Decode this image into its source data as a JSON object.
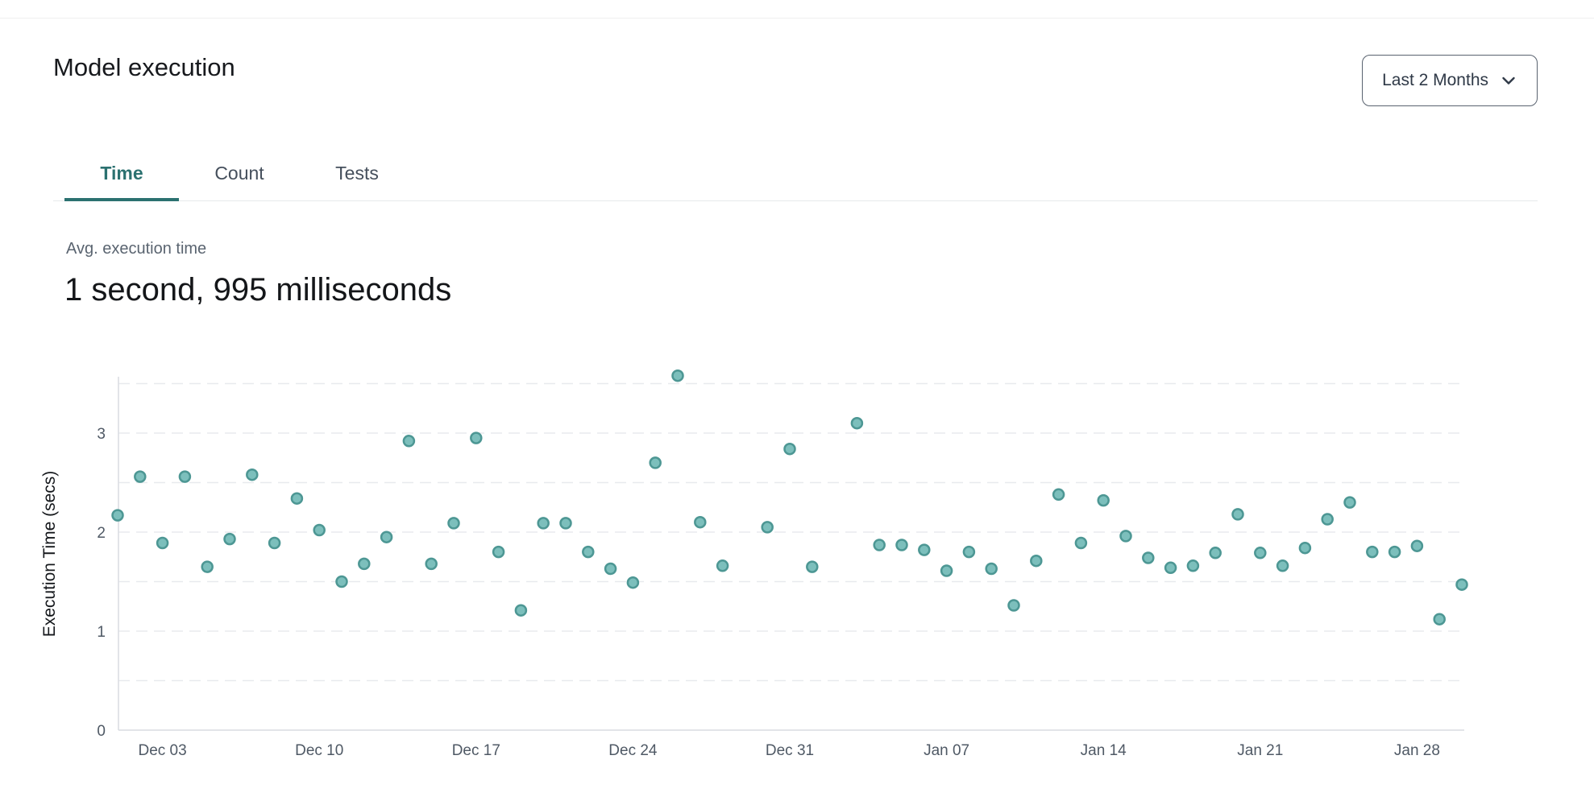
{
  "header": {
    "title": "Model execution",
    "range_selector": {
      "label": "Last 2 Months",
      "icon": "chevron-down-icon"
    }
  },
  "tabs": [
    {
      "label": "Time",
      "active": true
    },
    {
      "label": "Count",
      "active": false
    },
    {
      "label": "Tests",
      "active": false
    }
  ],
  "metric": {
    "label": "Avg. execution time",
    "value": "1 second, 995 milliseconds"
  },
  "chart_data": {
    "type": "scatter",
    "title": "",
    "xlabel": "",
    "ylabel": "Execution Time (secs)",
    "ylim": [
      0,
      3.7
    ],
    "y_ticks": [
      "0",
      "1",
      "2",
      "3"
    ],
    "gridlines": {
      "style": "dashed",
      "interval": 0.5,
      "min": 0.5,
      "max": 3.5
    },
    "x_ticks": [
      "Dec 03",
      "Dec 10",
      "Dec 17",
      "Dec 24",
      "Dec 31",
      "Jan 07",
      "Jan 14",
      "Jan 21",
      "Jan 28"
    ],
    "colors": {
      "point_fill": "#7cbfbc",
      "point_stroke": "#4d9794",
      "axis": "#d9dce1",
      "grid": "#e8eaee",
      "tick_label": "#4f5965",
      "accent": "#2b7170"
    },
    "points": [
      {
        "date": "Dec 01",
        "value": 2.17
      },
      {
        "date": "Dec 02",
        "value": 2.56
      },
      {
        "date": "Dec 03",
        "value": 1.89
      },
      {
        "date": "Dec 04",
        "value": 2.56
      },
      {
        "date": "Dec 05",
        "value": 1.65
      },
      {
        "date": "Dec 06",
        "value": 1.93
      },
      {
        "date": "Dec 07",
        "value": 2.58
      },
      {
        "date": "Dec 08",
        "value": 1.89
      },
      {
        "date": "Dec 09",
        "value": 2.34
      },
      {
        "date": "Dec 10",
        "value": 2.02
      },
      {
        "date": "Dec 11",
        "value": 1.5
      },
      {
        "date": "Dec 12",
        "value": 1.68
      },
      {
        "date": "Dec 13",
        "value": 1.95
      },
      {
        "date": "Dec 14",
        "value": 2.92
      },
      {
        "date": "Dec 15",
        "value": 1.68
      },
      {
        "date": "Dec 16",
        "value": 2.09
      },
      {
        "date": "Dec 17",
        "value": 2.95
      },
      {
        "date": "Dec 18",
        "value": 1.8
      },
      {
        "date": "Dec 19",
        "value": 1.21
      },
      {
        "date": "Dec 20",
        "value": 2.09
      },
      {
        "date": "Dec 21",
        "value": 2.09
      },
      {
        "date": "Dec 22",
        "value": 1.8
      },
      {
        "date": "Dec 23",
        "value": 1.63
      },
      {
        "date": "Dec 24",
        "value": 1.49
      },
      {
        "date": "Dec 25",
        "value": 2.7
      },
      {
        "date": "Dec 26",
        "value": 3.58
      },
      {
        "date": "Dec 27",
        "value": 2.1
      },
      {
        "date": "Dec 28",
        "value": 1.66
      },
      {
        "date": "Dec 30",
        "value": 2.05
      },
      {
        "date": "Dec 31",
        "value": 2.84
      },
      {
        "date": "Jan 01",
        "value": 1.65
      },
      {
        "date": "Jan 03",
        "value": 3.1
      },
      {
        "date": "Jan 04",
        "value": 1.87
      },
      {
        "date": "Jan 05",
        "value": 1.87
      },
      {
        "date": "Jan 06",
        "value": 1.82
      },
      {
        "date": "Jan 07",
        "value": 1.61
      },
      {
        "date": "Jan 08",
        "value": 1.8
      },
      {
        "date": "Jan 09",
        "value": 1.63
      },
      {
        "date": "Jan 10",
        "value": 1.26
      },
      {
        "date": "Jan 11",
        "value": 1.71
      },
      {
        "date": "Jan 12",
        "value": 2.38
      },
      {
        "date": "Jan 13",
        "value": 1.89
      },
      {
        "date": "Jan 14",
        "value": 2.32
      },
      {
        "date": "Jan 15",
        "value": 1.96
      },
      {
        "date": "Jan 16",
        "value": 1.74
      },
      {
        "date": "Jan 17",
        "value": 1.64
      },
      {
        "date": "Jan 18",
        "value": 1.66
      },
      {
        "date": "Jan 19",
        "value": 1.79
      },
      {
        "date": "Jan 20",
        "value": 2.18
      },
      {
        "date": "Jan 21",
        "value": 1.79
      },
      {
        "date": "Jan 22",
        "value": 1.66
      },
      {
        "date": "Jan 23",
        "value": 1.84
      },
      {
        "date": "Jan 24",
        "value": 2.13
      },
      {
        "date": "Jan 25",
        "value": 2.3
      },
      {
        "date": "Jan 26",
        "value": 1.8
      },
      {
        "date": "Jan 27",
        "value": 1.8
      },
      {
        "date": "Jan 28",
        "value": 1.86
      },
      {
        "date": "Jan 29",
        "value": 1.12
      },
      {
        "date": "Jan 30",
        "value": 1.47
      }
    ]
  }
}
